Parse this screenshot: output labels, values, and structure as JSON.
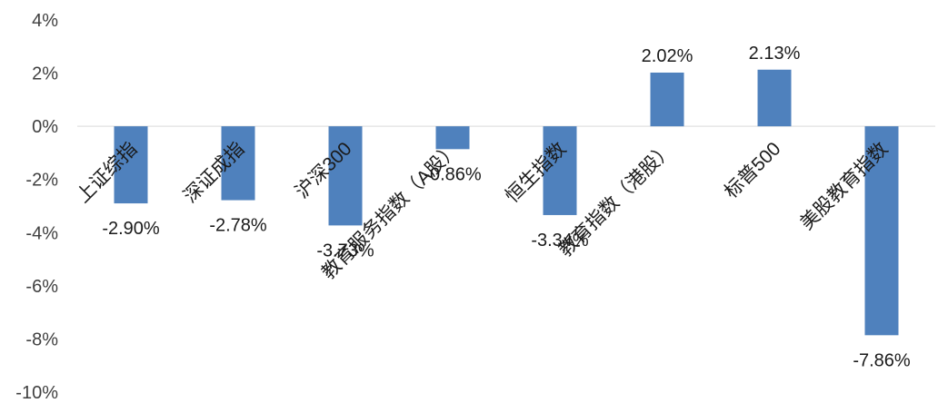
{
  "chart_data": {
    "type": "bar",
    "categories": [
      "上证综指",
      "深证成指",
      "沪深300",
      "教育服务指数（A股）",
      "恒生指数",
      "教育指数（港股）",
      "标普500",
      "美股教育指数"
    ],
    "values": [
      -2.9,
      -2.78,
      -3.73,
      -0.86,
      -3.34,
      2.02,
      2.13,
      -7.86
    ],
    "value_labels": [
      "-2.90%",
      "-2.78%",
      "-3.73%",
      "-0.86%",
      "-3.34%",
      "2.02%",
      "2.13%",
      "-7.86%"
    ],
    "ylim": [
      -10,
      4
    ],
    "yticks": [
      4,
      2,
      0,
      -2,
      -4,
      -6,
      -8,
      -10
    ],
    "ytick_labels": [
      "4%",
      "2%",
      "0%",
      "-2%",
      "-4%",
      "-6%",
      "-8%",
      "-10%"
    ],
    "bar_color": "#4F81BD",
    "grid": false,
    "title": "",
    "xlabel": "",
    "ylabel": ""
  }
}
